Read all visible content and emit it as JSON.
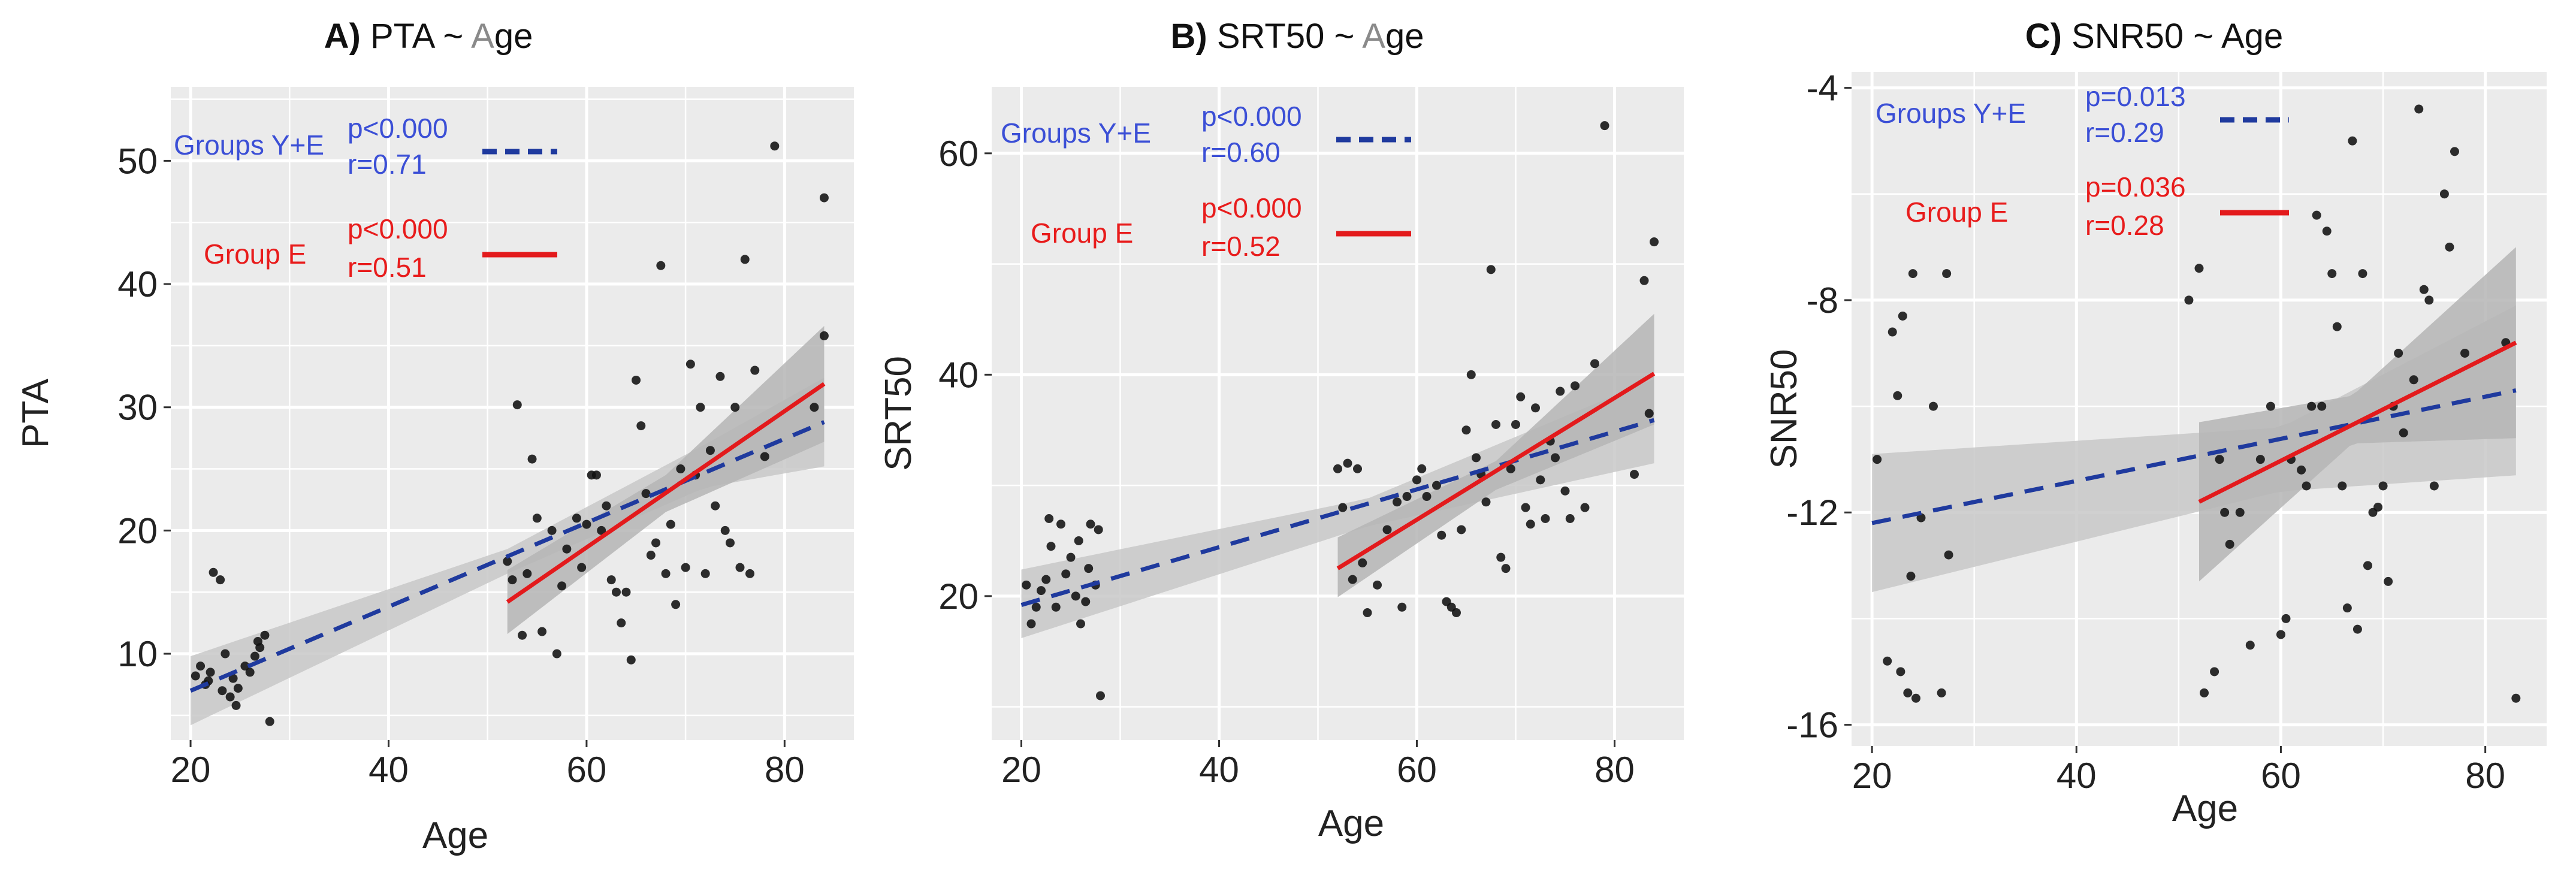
{
  "colors": {
    "panel_bg": "#ebebeb",
    "grid": "#ffffff",
    "band_all": "#c8c8c8",
    "band_e": "#b5b5b5",
    "line_all": "#1f3a9e",
    "line_e": "#e31a1c",
    "points": "#111111",
    "legend_blue_text": "#3b4fd6",
    "legend_red_text": "#e81c1c"
  },
  "chart_data": [
    {
      "type": "scatter",
      "title_prefix": "A)",
      "title_main": "PTA ~ ",
      "title_accent": "A",
      "title_end": "ge",
      "xlabel": "Age",
      "ylabel": "PTA",
      "xlim": [
        18,
        87
      ],
      "ylim": [
        3,
        56
      ],
      "xticks": [
        20,
        40,
        60,
        80
      ],
      "yticks": [
        10,
        20,
        30,
        40,
        50
      ],
      "legend": {
        "all_label": "Groups Y+E",
        "all_p": "p<0.000",
        "all_r": "r=0.71",
        "e_label": "Group E",
        "e_p": "p<0.000",
        "e_r": "r=0.51"
      },
      "fit_all": {
        "x": [
          20,
          84
        ],
        "y": [
          7.0,
          28.8
        ]
      },
      "fit_all_ci": {
        "x": [
          20,
          52,
          72,
          84
        ],
        "lower": [
          4.2,
          16.5,
          23.5,
          25.2
        ],
        "upper": [
          9.8,
          18.5,
          27.0,
          32.4
        ]
      },
      "fit_e": {
        "x": [
          52,
          84
        ],
        "y": [
          14.2,
          31.9
        ]
      },
      "fit_e_ci": {
        "x": [
          52,
          68,
          84
        ],
        "lower": [
          11.6,
          21.5,
          27.2
        ],
        "upper": [
          16.8,
          24.5,
          36.6
        ]
      },
      "points": [
        [
          20.5,
          8.2
        ],
        [
          21.0,
          9.0
        ],
        [
          21.5,
          7.5
        ],
        [
          22.0,
          8.5
        ],
        [
          22.3,
          16.6
        ],
        [
          23.0,
          16.0
        ],
        [
          23.2,
          7.0
        ],
        [
          23.5,
          10.0
        ],
        [
          24.0,
          6.5
        ],
        [
          24.3,
          8.0
        ],
        [
          24.8,
          7.2
        ],
        [
          25.5,
          9.0
        ],
        [
          26.0,
          8.5
        ],
        [
          26.5,
          9.8
        ],
        [
          27.0,
          10.5
        ],
        [
          27.5,
          11.5
        ],
        [
          28.0,
          4.5
        ],
        [
          26.8,
          11.0
        ],
        [
          24.6,
          5.8
        ],
        [
          21.8,
          7.8
        ],
        [
          52.0,
          17.5
        ],
        [
          52.5,
          16.0
        ],
        [
          53.0,
          30.2
        ],
        [
          53.5,
          11.5
        ],
        [
          54.0,
          16.5
        ],
        [
          54.5,
          25.8
        ],
        [
          55.0,
          21.0
        ],
        [
          55.5,
          11.8
        ],
        [
          56.5,
          20.0
        ],
        [
          57.0,
          10.0
        ],
        [
          57.5,
          15.5
        ],
        [
          58.0,
          18.5
        ],
        [
          59.0,
          21.0
        ],
        [
          59.5,
          17.0
        ],
        [
          60.0,
          20.5
        ],
        [
          60.5,
          24.5
        ],
        [
          61.0,
          24.5
        ],
        [
          61.5,
          20.0
        ],
        [
          62.0,
          22.0
        ],
        [
          62.5,
          16.0
        ],
        [
          63.0,
          15.0
        ],
        [
          63.5,
          12.5
        ],
        [
          64.0,
          15.0
        ],
        [
          64.5,
          9.5
        ],
        [
          65.0,
          32.2
        ],
        [
          65.5,
          28.5
        ],
        [
          66.0,
          23.0
        ],
        [
          66.5,
          18.0
        ],
        [
          67.0,
          19.0
        ],
        [
          67.5,
          41.5
        ],
        [
          68.0,
          16.5
        ],
        [
          68.5,
          20.5
        ],
        [
          69.0,
          14.0
        ],
        [
          69.5,
          25.0
        ],
        [
          70.0,
          17.0
        ],
        [
          70.5,
          33.5
        ],
        [
          71.0,
          24.5
        ],
        [
          71.5,
          30.0
        ],
        [
          72.0,
          16.5
        ],
        [
          72.5,
          26.5
        ],
        [
          73.0,
          22.0
        ],
        [
          73.5,
          32.5
        ],
        [
          74.0,
          20.0
        ],
        [
          74.5,
          19.0
        ],
        [
          75.0,
          30.0
        ],
        [
          75.5,
          17.0
        ],
        [
          76.0,
          42.0
        ],
        [
          76.5,
          16.5
        ],
        [
          77.0,
          33.0
        ],
        [
          78.0,
          26.0
        ],
        [
          79.0,
          51.2
        ],
        [
          84.0,
          47.0
        ],
        [
          84.0,
          35.8
        ],
        [
          83.0,
          30.0
        ]
      ]
    },
    {
      "type": "scatter",
      "title_prefix": "B)",
      "title_main": "SRT50 ~ ",
      "title_accent": "A",
      "title_end": "ge",
      "xlabel": "Age",
      "ylabel": "SRT50",
      "xlim": [
        17,
        87
      ],
      "ylim": [
        7,
        66
      ],
      "xticks": [
        20,
        40,
        60,
        80
      ],
      "yticks": [
        20,
        40,
        60
      ],
      "legend": {
        "all_label": "Groups Y+E",
        "all_p": "p<0.000",
        "all_r": "r=0.60",
        "e_label": "Group E",
        "e_p": "p<0.000",
        "e_r": "r=0.52"
      },
      "fit_all": {
        "x": [
          20,
          84
        ],
        "y": [
          19.2,
          35.9
        ]
      },
      "fit_all_ci": {
        "x": [
          20,
          55,
          84
        ],
        "lower": [
          16.2,
          26.3,
          32.0
        ],
        "upper": [
          22.4,
          28.8,
          39.6
        ]
      },
      "fit_e": {
        "x": [
          52,
          84
        ],
        "y": [
          22.5,
          40.1
        ]
      },
      "fit_e_ci": {
        "x": [
          52,
          68,
          84
        ],
        "lower": [
          19.9,
          29.6,
          35.5
        ],
        "upper": [
          25.3,
          32.2,
          45.5
        ]
      },
      "points": [
        [
          20.5,
          21.0
        ],
        [
          21.0,
          17.5
        ],
        [
          21.5,
          19.0
        ],
        [
          22.0,
          20.5
        ],
        [
          22.5,
          21.5
        ],
        [
          23.0,
          24.5
        ],
        [
          23.5,
          19.0
        ],
        [
          24.0,
          26.5
        ],
        [
          24.5,
          22.0
        ],
        [
          25.0,
          23.5
        ],
        [
          25.5,
          20.0
        ],
        [
          26.0,
          17.5
        ],
        [
          26.5,
          19.5
        ],
        [
          27.0,
          26.5
        ],
        [
          27.5,
          21.0
        ],
        [
          27.8,
          26.0
        ],
        [
          28.0,
          11.0
        ],
        [
          26.8,
          22.5
        ],
        [
          22.8,
          27.0
        ],
        [
          25.8,
          25.0
        ],
        [
          52.0,
          31.5
        ],
        [
          52.5,
          28.0
        ],
        [
          53.0,
          32.0
        ],
        [
          53.5,
          21.5
        ],
        [
          54.0,
          31.5
        ],
        [
          54.5,
          23.0
        ],
        [
          55.0,
          18.5
        ],
        [
          56.0,
          21.0
        ],
        [
          57.0,
          26.0
        ],
        [
          58.0,
          28.5
        ],
        [
          58.5,
          19.0
        ],
        [
          59.0,
          29.0
        ],
        [
          60.0,
          30.5
        ],
        [
          60.5,
          31.5
        ],
        [
          61.0,
          29.0
        ],
        [
          62.0,
          30.0
        ],
        [
          62.5,
          25.5
        ],
        [
          63.0,
          19.5
        ],
        [
          63.5,
          19.0
        ],
        [
          64.0,
          18.5
        ],
        [
          64.5,
          26.0
        ],
        [
          65.0,
          35.0
        ],
        [
          65.5,
          40.0
        ],
        [
          66.0,
          32.5
        ],
        [
          66.5,
          31.0
        ],
        [
          67.0,
          28.5
        ],
        [
          67.5,
          49.5
        ],
        [
          68.0,
          35.5
        ],
        [
          68.5,
          23.5
        ],
        [
          69.0,
          22.5
        ],
        [
          69.5,
          31.5
        ],
        [
          70.0,
          35.5
        ],
        [
          70.5,
          38.0
        ],
        [
          71.0,
          28.0
        ],
        [
          71.5,
          26.5
        ],
        [
          72.0,
          37.0
        ],
        [
          72.5,
          30.5
        ],
        [
          73.0,
          27.0
        ],
        [
          73.5,
          34.0
        ],
        [
          74.0,
          32.5
        ],
        [
          74.5,
          38.5
        ],
        [
          75.0,
          29.5
        ],
        [
          75.5,
          27.0
        ],
        [
          76.0,
          39.0
        ],
        [
          77.0,
          28.0
        ],
        [
          78.0,
          41.0
        ],
        [
          79.0,
          62.5
        ],
        [
          82.0,
          31.0
        ],
        [
          83.0,
          48.5
        ],
        [
          84.0,
          52.0
        ],
        [
          83.5,
          36.5
        ]
      ]
    },
    {
      "type": "scatter",
      "title_prefix": "C)",
      "title_main": "SNR50 ~ Age",
      "title_accent": "",
      "title_end": "",
      "xlabel": "Age",
      "ylabel": "SNR50",
      "xlim": [
        18,
        86
      ],
      "ylim": [
        -16.4,
        -3.7
      ],
      "xticks": [
        20,
        40,
        60,
        80
      ],
      "yticks": [
        -16,
        -12,
        -8,
        -4
      ],
      "legend": {
        "all_label": "Groups Y+E",
        "all_p": "p=0.013",
        "all_r": "r=0.29",
        "e_label": "Group E",
        "e_p": "p=0.036",
        "e_r": "r=0.28"
      },
      "fit_all": {
        "x": [
          20,
          83
        ],
        "y": [
          -12.2,
          -9.7
        ]
      },
      "fit_all_ci": {
        "x": [
          20,
          60,
          83
        ],
        "lower": [
          -13.5,
          -11.6,
          -11.3
        ],
        "upper": [
          -10.9,
          -10.4,
          -8.1
        ]
      },
      "fit_e": {
        "x": [
          52,
          83
        ],
        "y": [
          -11.8,
          -8.8
        ]
      },
      "fit_e_ci": {
        "x": [
          52,
          67,
          83
        ],
        "lower": [
          -13.3,
          -10.7,
          -10.6
        ],
        "upper": [
          -10.3,
          -9.8,
          -7.0
        ]
      },
      "points": [
        [
          20.5,
          -11.0
        ],
        [
          21.5,
          -14.8
        ],
        [
          22.0,
          -8.6
        ],
        [
          22.5,
          -9.8
        ],
        [
          22.8,
          -15.0
        ],
        [
          23.0,
          -8.3
        ],
        [
          23.5,
          -15.4
        ],
        [
          23.8,
          -13.2
        ],
        [
          24.0,
          -7.5
        ],
        [
          24.3,
          -15.5
        ],
        [
          24.8,
          -12.1
        ],
        [
          26.0,
          -10.0
        ],
        [
          26.8,
          -15.4
        ],
        [
          27.3,
          -7.5
        ],
        [
          27.5,
          -12.8
        ],
        [
          51.0,
          -8.0
        ],
        [
          52.0,
          -7.4
        ],
        [
          52.5,
          -15.4
        ],
        [
          53.5,
          -15.0
        ],
        [
          54.0,
          -11.0
        ],
        [
          54.5,
          -12.0
        ],
        [
          55.0,
          -12.6
        ],
        [
          56.0,
          -12.0
        ],
        [
          57.0,
          -14.5
        ],
        [
          58.0,
          -11.0
        ],
        [
          59.0,
          -10.0
        ],
        [
          60.0,
          -14.3
        ],
        [
          60.5,
          -14.0
        ],
        [
          61.0,
          -11.0
        ],
        [
          62.0,
          -11.2
        ],
        [
          62.5,
          -11.5
        ],
        [
          63.0,
          -10.0
        ],
        [
          63.5,
          -6.4
        ],
        [
          64.0,
          -10.0
        ],
        [
          64.5,
          -6.7
        ],
        [
          65.0,
          -7.5
        ],
        [
          65.5,
          -8.5
        ],
        [
          66.0,
          -11.5
        ],
        [
          66.5,
          -13.8
        ],
        [
          67.0,
          -5.0
        ],
        [
          67.5,
          -14.2
        ],
        [
          68.0,
          -7.5
        ],
        [
          68.5,
          -13.0
        ],
        [
          69.0,
          -12.0
        ],
        [
          69.5,
          -11.9
        ],
        [
          70.0,
          -11.5
        ],
        [
          70.5,
          -13.3
        ],
        [
          71.0,
          -10.0
        ],
        [
          71.5,
          -9.0
        ],
        [
          72.0,
          -10.5
        ],
        [
          73.0,
          -9.5
        ],
        [
          73.5,
          -4.4
        ],
        [
          74.0,
          -7.8
        ],
        [
          74.5,
          -8.0
        ],
        [
          75.0,
          -11.5
        ],
        [
          76.0,
          -6.0
        ],
        [
          76.5,
          -7.0
        ],
        [
          77.0,
          -5.2
        ],
        [
          78.0,
          -9.0
        ],
        [
          82.0,
          -8.8
        ],
        [
          83.0,
          -15.5
        ]
      ]
    }
  ]
}
